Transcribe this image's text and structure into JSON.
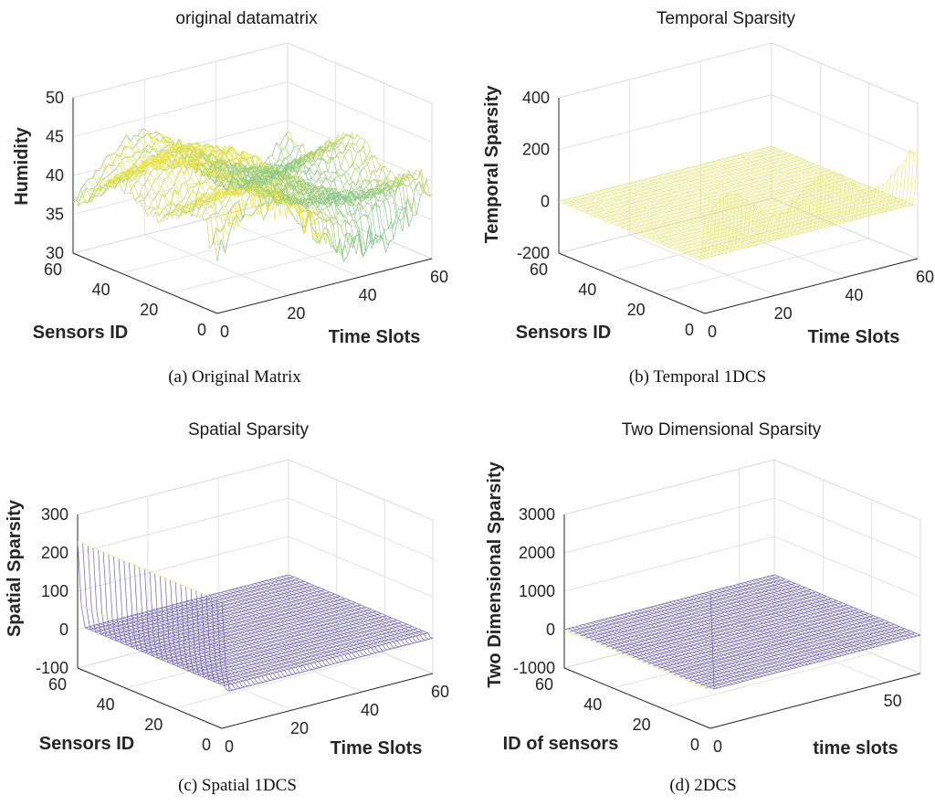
{
  "chart_data": [
    {
      "type": "surface",
      "panel": "a",
      "title": "original datamatrix",
      "caption": "(a)  Original Matrix",
      "xlabel": "Time Slots",
      "ylabel": "Sensors ID",
      "zlabel": "Humidity",
      "xlim": [
        0,
        60
      ],
      "ylim": [
        0,
        60
      ],
      "zlim": [
        30,
        50
      ],
      "xticks": [
        0,
        20,
        40,
        60
      ],
      "yticks": [
        0,
        20,
        40,
        60
      ],
      "zticks": [
        30,
        35,
        40,
        45,
        50
      ],
      "surface": "humidity"
    },
    {
      "type": "surface",
      "panel": "b",
      "title": "Temporal Sparsity",
      "caption": "(b)  Temporal 1DCS",
      "xlabel": "Time Slots",
      "ylabel": "Sensors ID",
      "zlabel": "Temporal Sparsity",
      "xlim": [
        0,
        60
      ],
      "ylim": [
        0,
        60
      ],
      "zlim": [
        -200,
        400
      ],
      "xticks": [
        0,
        20,
        40,
        60
      ],
      "yticks": [
        0,
        20,
        40,
        60
      ],
      "zticks": [
        -200,
        0,
        200,
        400
      ],
      "surface": "temporal"
    },
    {
      "type": "surface",
      "panel": "c",
      "title": "Spatial Sparsity",
      "caption": "(c)  Spatial 1DCS",
      "xlabel": "Time Slots",
      "ylabel": "Sensors ID",
      "zlabel": "Spatial Sparsity",
      "xlim": [
        0,
        60
      ],
      "ylim": [
        0,
        60
      ],
      "zlim": [
        -100,
        300
      ],
      "xticks": [
        0,
        20,
        40,
        60
      ],
      "yticks": [
        0,
        20,
        40,
        60
      ],
      "zticks": [
        -100,
        0,
        100,
        200,
        300
      ],
      "surface": "spatial"
    },
    {
      "type": "surface",
      "panel": "d",
      "title": "Two Dimensional Sparsity",
      "caption": "(d)  2DCS",
      "xlabel": "time slots",
      "ylabel": "ID of sensors",
      "zlabel": "Two Dimensional Sparsity",
      "xlim": [
        0,
        60
      ],
      "ylim": [
        0,
        60
      ],
      "zlim": [
        -1000,
        3000
      ],
      "xticks": [
        0,
        50
      ],
      "yticks": [
        0,
        20,
        40,
        60
      ],
      "zticks": [
        -1000,
        0,
        1000,
        2000,
        3000
      ],
      "surface": "twoD"
    }
  ]
}
